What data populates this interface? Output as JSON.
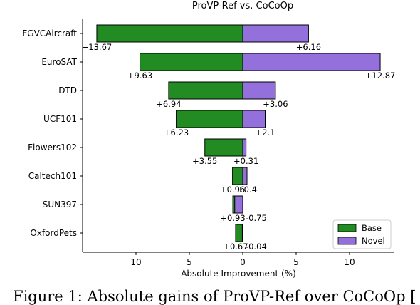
{
  "chart_data": {
    "type": "bar",
    "orientation": "horizontal-diverging",
    "title": "ProVP-Ref vs. CoCoOp",
    "xlabel": "Absolute Improvement (%)",
    "categories": [
      "FGVCAircraft",
      "EuroSAT",
      "DTD",
      "UCF101",
      "Flowers102",
      "Caltech101",
      "SUN397",
      "OxfordPets"
    ],
    "xticks": [
      10,
      5,
      0,
      5,
      10
    ],
    "xlim": [
      -15,
      14.3
    ],
    "series": [
      {
        "name": "Base",
        "color": "#228b22",
        "direction": "left",
        "values": [
          13.67,
          9.63,
          6.94,
          6.23,
          3.55,
          0.96,
          0.93,
          0.67
        ],
        "labels": [
          "+13.67",
          "+9.63",
          "+6.94",
          "+6.23",
          "+3.55",
          "+0.96",
          "+0.93",
          "+0.67"
        ]
      },
      {
        "name": "Novel",
        "color": "#9370db",
        "direction": "right",
        "values": [
          6.16,
          12.87,
          3.06,
          2.1,
          0.31,
          0.4,
          -0.75,
          -0.04
        ],
        "labels": [
          "+6.16",
          "+12.87",
          "+3.06",
          "+2.1",
          "+0.31",
          "+0.4",
          "-0.75",
          "-0.04"
        ]
      }
    ],
    "legend": {
      "position": "bottom-right"
    },
    "grid": false
  },
  "caption": "Figure 1: Absolute gains of ProVP-Ref over CoCoOp ["
}
